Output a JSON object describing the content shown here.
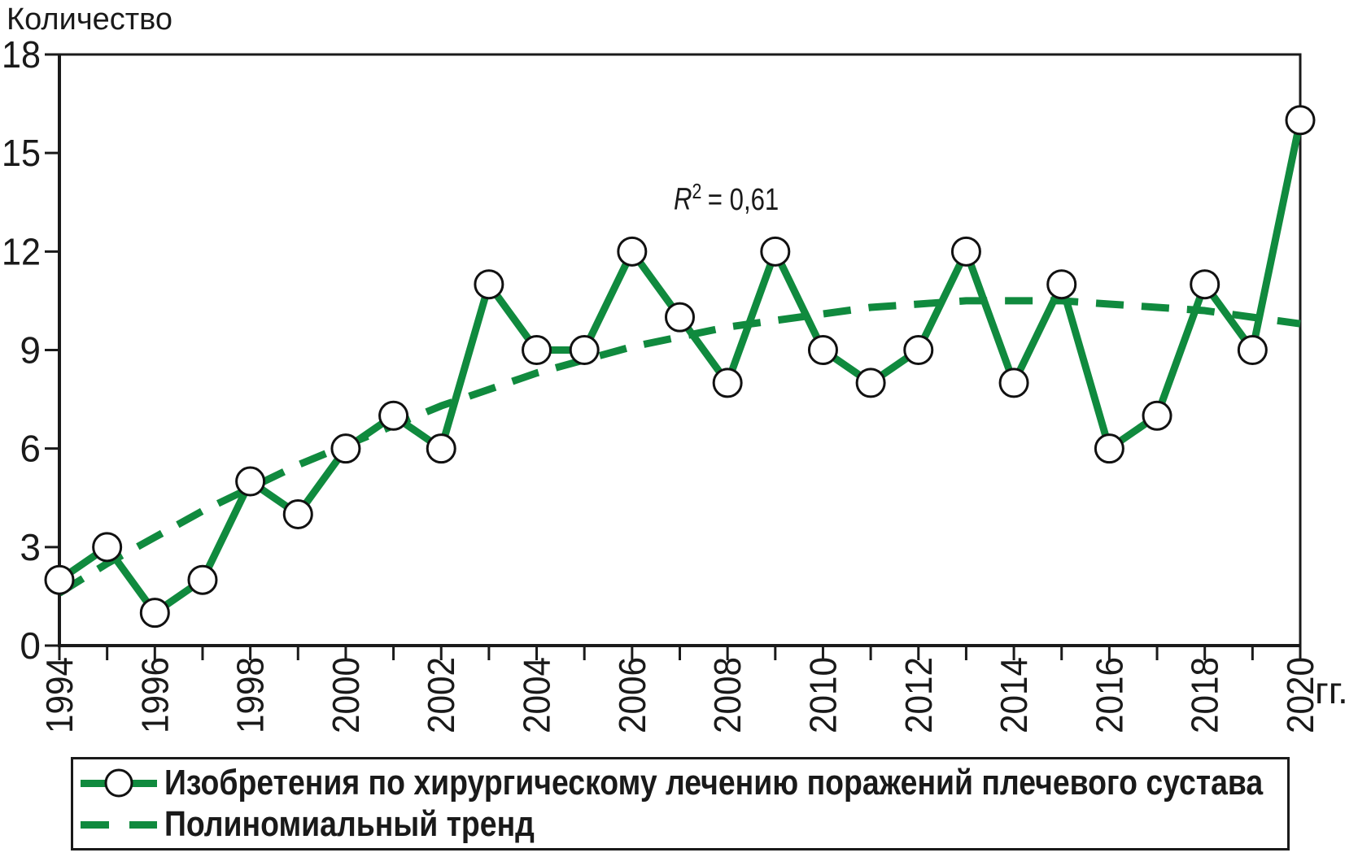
{
  "axes": {
    "y_title": "Количество",
    "x_unit": "гг."
  },
  "annotation": {
    "symbol": "R",
    "exponent": "2",
    "rest": "= 0,61"
  },
  "legend": {
    "items": [
      {
        "label": "Изобретения по хирургическому лечению поражений плечевого сустава",
        "marker": "line-circle"
      },
      {
        "label": "Полиномиальный тренд",
        "marker": "dashed-line"
      }
    ]
  },
  "colors": {
    "series_green": "#108A3E",
    "axis_black": "#1a1a1a",
    "marker_fill": "#ffffff",
    "marker_stroke": "#111111"
  },
  "chart_data": {
    "type": "line",
    "title": "",
    "ylabel": "Количество",
    "xlabel": "гг.",
    "ylim": [
      0,
      18
    ],
    "y_ticks": [
      0,
      3,
      6,
      9,
      12,
      15,
      18
    ],
    "x": [
      1994,
      1995,
      1996,
      1997,
      1998,
      1999,
      2000,
      2001,
      2002,
      2003,
      2004,
      2005,
      2006,
      2007,
      2008,
      2009,
      2010,
      2011,
      2012,
      2013,
      2014,
      2015,
      2016,
      2017,
      2018,
      2019,
      2020
    ],
    "x_tick_labels": [
      1994,
      1996,
      1998,
      2000,
      2002,
      2004,
      2006,
      2008,
      2010,
      2012,
      2014,
      2016,
      2018,
      2020
    ],
    "grid": false,
    "legend_position": "bottom",
    "annotation": "R² = 0,61",
    "series": [
      {
        "name": "Изобретения по хирургическому лечению поражений плечевого сустава",
        "style": "solid-line-circle-markers",
        "values": [
          2,
          3,
          1,
          2,
          5,
          4,
          6,
          7,
          6,
          11,
          9,
          9,
          12,
          10,
          8,
          12,
          9,
          8,
          9,
          12,
          8,
          11,
          6,
          7,
          11,
          9,
          16
        ]
      },
      {
        "name": "Полиномиальный тренд",
        "style": "dashed",
        "values": [
          1.6,
          2.5,
          3.3,
          4.1,
          4.8,
          5.5,
          6.1,
          6.7,
          7.3,
          7.8,
          8.3,
          8.7,
          9.1,
          9.4,
          9.7,
          9.9,
          10.1,
          10.3,
          10.4,
          10.5,
          10.5,
          10.5,
          10.4,
          10.3,
          10.2,
          10.0,
          9.8
        ]
      }
    ]
  }
}
